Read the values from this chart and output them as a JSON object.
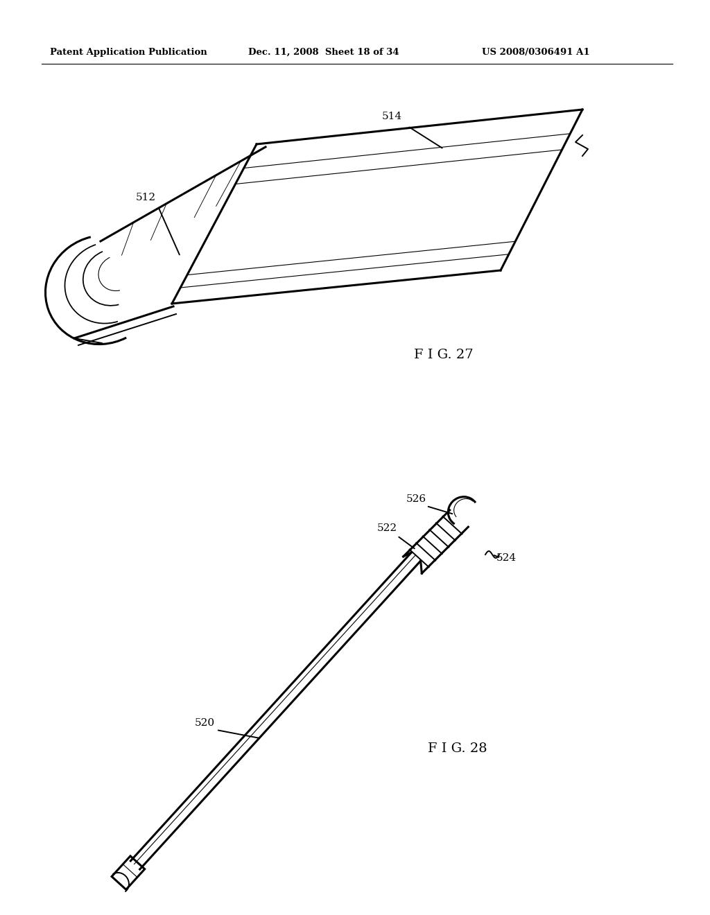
{
  "bg_color": "#ffffff",
  "header_left": "Patent Application Publication",
  "header_mid": "Dec. 11, 2008  Sheet 18 of 34",
  "header_right": "US 2008/0306491 A1",
  "fig27_label": "F I G. 27",
  "fig28_label": "F I G. 28",
  "label_514": "514",
  "label_512": "512",
  "label_526": "526",
  "label_522": "522",
  "label_524": "524",
  "label_520": "520",
  "line_color": "#000000",
  "lw_thick": 2.2,
  "lw_med": 1.4,
  "lw_thin": 0.8
}
